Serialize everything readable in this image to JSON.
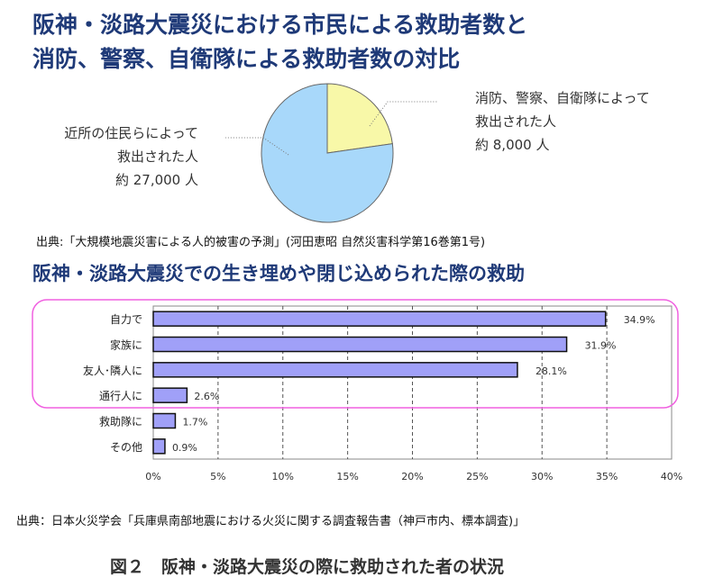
{
  "header": {
    "title_line1": "阪神・淡路大震災における市民による救助者数と",
    "title_line2": "消防、警察、自衛隊による救助者数の対比"
  },
  "chart_data": [
    {
      "type": "pie",
      "slices": [
        {
          "label_lines": [
            "消防、警察、自衛隊によって",
            "救出された人",
            "約 8,000 人"
          ],
          "value": 8000,
          "color": "#f8f8a8"
        },
        {
          "label_lines": [
            "近所の住民らによって",
            "救出された人",
            "約 27,000 人"
          ],
          "value": 27000,
          "color": "#a8d8fa"
        }
      ],
      "source": "出典:「大規模地震災害による人的被害の予測」(河田恵昭 自然災害科学第16巻第1号)"
    },
    {
      "type": "bar",
      "orientation": "horizontal",
      "title": "阪神・淡路大震災での生き埋めや閉じ込められた際の救助",
      "categories": [
        "自力で",
        "家族に",
        "友人･隣人に",
        "通行人に",
        "救助隊に",
        "その他"
      ],
      "values": [
        34.9,
        31.9,
        28.1,
        2.6,
        1.7,
        0.9
      ],
      "value_labels": [
        "34.9%",
        "31.9%",
        "28.1%",
        "2.6%",
        "1.7%",
        "0.9%"
      ],
      "xlim": [
        0,
        40
      ],
      "xticks": [
        "0%",
        "5%",
        "10%",
        "15%",
        "20%",
        "25%",
        "30%",
        "35%",
        "40%"
      ],
      "grid": "vertical dashed",
      "bar_color": "#a0a0f8",
      "highlight_color": "#f060e0",
      "source": "出典：日本火災学会「兵庫県南部地震における火災に関する調査報告書（神戸市内、標本調査)」"
    }
  ],
  "caption": "図２　阪神・淡路大震災の際に救助された者の状況"
}
